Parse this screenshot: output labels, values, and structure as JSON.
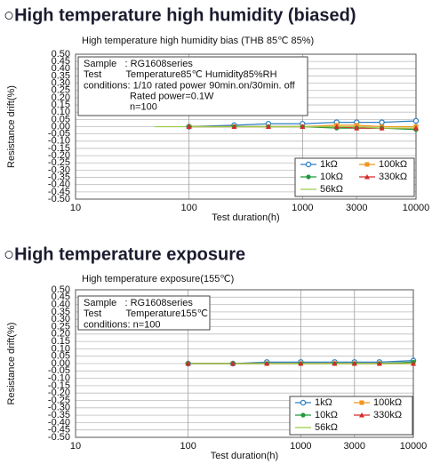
{
  "chart_data": [
    {
      "type": "line",
      "heading": "○High temperature high humidity (biased)",
      "title": "High temperature high humidity bias (THB 85℃ 85%)",
      "annotation": [
        "Sample   : RG1608series",
        "Test         Temperature85℃ Humidity85%RH",
        "conditions: 1/10 rated power 90min.on/30min. off",
        "                 Rated power=0.1W",
        "                 n=100"
      ],
      "x_label": "Test duration(h)",
      "y_label": "Resistance drift(%)",
      "xscale": "log",
      "xlim": [
        10,
        10000
      ],
      "xticks": [
        10,
        100,
        1000,
        3000,
        10000
      ],
      "ylim": [
        -0.5,
        0.5
      ],
      "yticks": [
        {
          "value": 0.5,
          "label": "0.50"
        },
        {
          "value": 0.45,
          "label": "0.45"
        },
        {
          "value": 0.4,
          "label": "0.40"
        },
        {
          "value": 0.35,
          "label": "0.35"
        },
        {
          "value": 0.3,
          "label": "0.30"
        },
        {
          "value": 0.25,
          "label": "0.25"
        },
        {
          "value": 0.2,
          "label": "0.20"
        },
        {
          "value": 0.15,
          "label": "0.15"
        },
        {
          "value": 0.1,
          "label": "0.10"
        },
        {
          "value": 0.05,
          "label": "0.05"
        },
        {
          "value": 0,
          "label": "0.00"
        },
        {
          "value": -0.05,
          "label": "-0.05"
        },
        {
          "value": -0.1,
          "label": "-0.10"
        },
        {
          "value": -0.15,
          "label": "-0.15"
        },
        {
          "value": -0.2,
          "label": "-0.20"
        },
        {
          "value": -0.25,
          "label": "-0.25"
        },
        {
          "value": -0.3,
          "label": "-0.30"
        },
        {
          "value": -0.35,
          "label": "-0.35"
        },
        {
          "value": -0.4,
          "label": "-0.40"
        },
        {
          "value": -0.45,
          "label": "-0.45"
        },
        {
          "value": -0.5,
          "label": "-0.50"
        }
      ],
      "grid": true,
      "x": [
        50,
        100,
        250,
        500,
        1000,
        2000,
        3000,
        5000,
        10000
      ],
      "series": [
        {
          "name": "1kΩ",
          "color": "#2e7fc1",
          "marker": "circle-open",
          "values": [
            null,
            0.0,
            0.01,
            0.02,
            0.02,
            0.03,
            0.03,
            0.03,
            0.04
          ]
        },
        {
          "name": "100kΩ",
          "color": "#f0961e",
          "marker": "square",
          "values": [
            null,
            0.0,
            0.0,
            0.0,
            0.0,
            0.01,
            0.01,
            0.0,
            0.0
          ]
        },
        {
          "name": "10kΩ",
          "color": "#1f9a3c",
          "marker": "circle",
          "values": [
            null,
            0.0,
            0.0,
            0.0,
            0.0,
            -0.01,
            -0.01,
            -0.01,
            -0.02
          ]
        },
        {
          "name": "330kΩ",
          "color": "#d62a2a",
          "marker": "triangle",
          "values": [
            null,
            0.0,
            0.0,
            0.0,
            0.0,
            0.0,
            -0.01,
            -0.01,
            -0.01
          ]
        },
        {
          "name": "56kΩ",
          "color": "#9ccc4a",
          "marker": "none",
          "values": [
            0.0,
            0.0,
            0.0,
            0.0,
            0.0,
            0.0,
            0.0,
            -0.01,
            -0.01
          ]
        }
      ]
    },
    {
      "type": "line",
      "heading": "○High temperature exposure",
      "title": "High temperature exposure(155℃)",
      "annotation": [
        "Sample   : RG1608series",
        "Test         Temperature155℃",
        "conditions: n=100"
      ],
      "x_label": "Test duration(h)",
      "y_label": "Resistance drift(%)",
      "xscale": "log",
      "xlim": [
        10,
        10000
      ],
      "xticks": [
        10,
        100,
        1000,
        3000,
        10000
      ],
      "ylim": [
        -0.5,
        0.5
      ],
      "yticks": [
        {
          "value": 0.5,
          "label": "0.50"
        },
        {
          "value": 0.45,
          "label": "0.45"
        },
        {
          "value": 0.4,
          "label": "0.40"
        },
        {
          "value": 0.35,
          "label": "0.35"
        },
        {
          "value": 0.3,
          "label": "0.30"
        },
        {
          "value": 0.25,
          "label": "0.25"
        },
        {
          "value": 0.2,
          "label": "0.20"
        },
        {
          "value": 0.15,
          "label": "0.15"
        },
        {
          "value": 0.1,
          "label": "0.10"
        },
        {
          "value": 0.05,
          "label": "0.05"
        },
        {
          "value": 0,
          "label": "0.00"
        },
        {
          "value": -0.05,
          "label": "-0.05"
        },
        {
          "value": -0.1,
          "label": "-0.10"
        },
        {
          "value": -0.15,
          "label": "-0.15"
        },
        {
          "value": -0.2,
          "label": "-0.20"
        },
        {
          "value": -0.25,
          "label": "-0.25"
        },
        {
          "value": -0.3,
          "label": "-0.30"
        },
        {
          "value": -0.35,
          "label": "-0.35"
        },
        {
          "value": -0.4,
          "label": "-0.40"
        },
        {
          "value": -0.45,
          "label": "-0.45"
        },
        {
          "value": -0.5,
          "label": "-0.50"
        }
      ],
      "grid": true,
      "x": [
        100,
        250,
        500,
        1000,
        2000,
        3000,
        5000,
        10000
      ],
      "series": [
        {
          "name": "1kΩ",
          "color": "#2e7fc1",
          "marker": "circle-open",
          "values": [
            0.0,
            0.0,
            0.01,
            0.01,
            0.01,
            0.01,
            0.01,
            0.02
          ]
        },
        {
          "name": "100kΩ",
          "color": "#f0961e",
          "marker": "square",
          "values": [
            0.0,
            0.0,
            0.0,
            0.0,
            0.0,
            0.0,
            0.0,
            0.0
          ]
        },
        {
          "name": "10kΩ",
          "color": "#1f9a3c",
          "marker": "circle",
          "values": [
            0.0,
            0.0,
            0.0,
            0.0,
            0.0,
            0.0,
            0.0,
            0.01
          ]
        },
        {
          "name": "330kΩ",
          "color": "#d62a2a",
          "marker": "triangle",
          "values": [
            0.0,
            0.0,
            0.0,
            0.0,
            0.0,
            0.0,
            0.0,
            0.0
          ]
        },
        {
          "name": "56kΩ",
          "color": "#9ccc4a",
          "marker": "none",
          "values": [
            0.0,
            0.0,
            0.0,
            0.0,
            0.0,
            0.0,
            0.0,
            0.0
          ]
        }
      ]
    }
  ]
}
